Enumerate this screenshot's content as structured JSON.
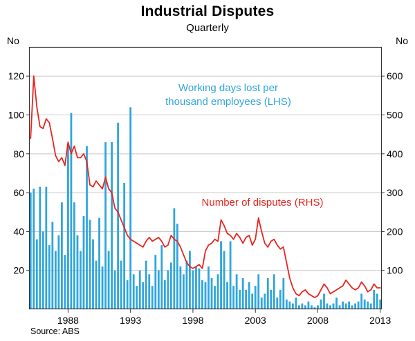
{
  "title": "Industrial Disputes",
  "subtitle": "Quarterly",
  "source": "Source: ABS",
  "axes": {
    "left_unit": "No",
    "right_unit": "No"
  },
  "annotations": {
    "bars_label_line1": "Working days lost per",
    "bars_label_line2": "thousand employees (LHS)",
    "line_label": "Number of disputes (RHS)"
  },
  "colors": {
    "bars": "#2FA5DC",
    "line": "#E8241E",
    "grid": "#c6c6c6",
    "axis": "#333333",
    "text": "#000000"
  },
  "chart_data": {
    "type": "bar",
    "x_start": 1985.0,
    "x_step": 0.25,
    "x_ticks": [
      1988,
      1993,
      1998,
      2003,
      2008,
      2013
    ],
    "left_ticks": [
      20,
      40,
      60,
      80,
      100,
      120
    ],
    "right_ticks": [
      100,
      200,
      300,
      400,
      500,
      600
    ],
    "left_ylim": [
      0,
      135
    ],
    "right_ylim": [
      0,
      675
    ],
    "grid": true,
    "series": [
      {
        "name": "Working days lost per thousand employees (LHS)",
        "type": "bar",
        "axis": "left",
        "values": [
          60,
          62,
          36,
          63,
          40,
          63,
          33,
          45,
          30,
          38,
          55,
          28,
          85,
          101,
          55,
          38,
          30,
          48,
          84,
          46,
          36,
          25,
          47,
          22,
          86,
          30,
          86,
          20,
          96,
          25,
          65,
          15,
          104,
          18,
          12,
          20,
          14,
          25,
          18,
          12,
          28,
          20,
          33,
          15,
          20,
          24,
          52,
          44,
          22,
          18,
          25,
          30,
          20,
          22,
          21,
          15,
          14,
          22,
          16,
          12,
          18,
          35,
          30,
          14,
          35,
          12,
          18,
          10,
          16,
          10,
          14,
          8,
          12,
          18,
          6,
          8,
          16,
          10,
          18,
          6,
          10,
          16,
          5,
          4,
          3,
          6,
          2,
          3,
          2,
          4,
          2,
          1,
          2,
          5,
          8,
          3,
          2,
          3,
          6,
          2,
          4,
          3,
          4,
          2,
          3,
          4,
          8,
          5,
          4,
          3,
          10,
          8,
          5
        ]
      },
      {
        "name": "Number of disputes (RHS)",
        "type": "line",
        "axis": "right",
        "values": [
          440,
          600,
          520,
          470,
          465,
          490,
          480,
          440,
          395,
          380,
          390,
          370,
          430,
          400,
          420,
          390,
          390,
          400,
          380,
          320,
          315,
          330,
          320,
          310,
          340,
          310,
          300,
          260,
          250,
          230,
          210,
          190,
          180,
          175,
          170,
          165,
          160,
          175,
          185,
          175,
          180,
          185,
          175,
          160,
          165,
          190,
          180,
          175,
          160,
          140,
          120,
          110,
          105,
          110,
          115,
          105,
          150,
          165,
          170,
          180,
          175,
          230,
          215,
          195,
          190,
          180,
          195,
          185,
          170,
          185,
          190,
          165,
          180,
          235,
          200,
          170,
          160,
          175,
          180,
          165,
          155,
          160,
          120,
          80,
          55,
          40,
          35,
          45,
          50,
          40,
          35,
          30,
          35,
          50,
          65,
          55,
          40,
          45,
          50,
          55,
          60,
          75,
          65,
          55,
          50,
          55,
          70,
          60,
          45,
          50,
          65,
          55,
          55
        ]
      }
    ]
  }
}
